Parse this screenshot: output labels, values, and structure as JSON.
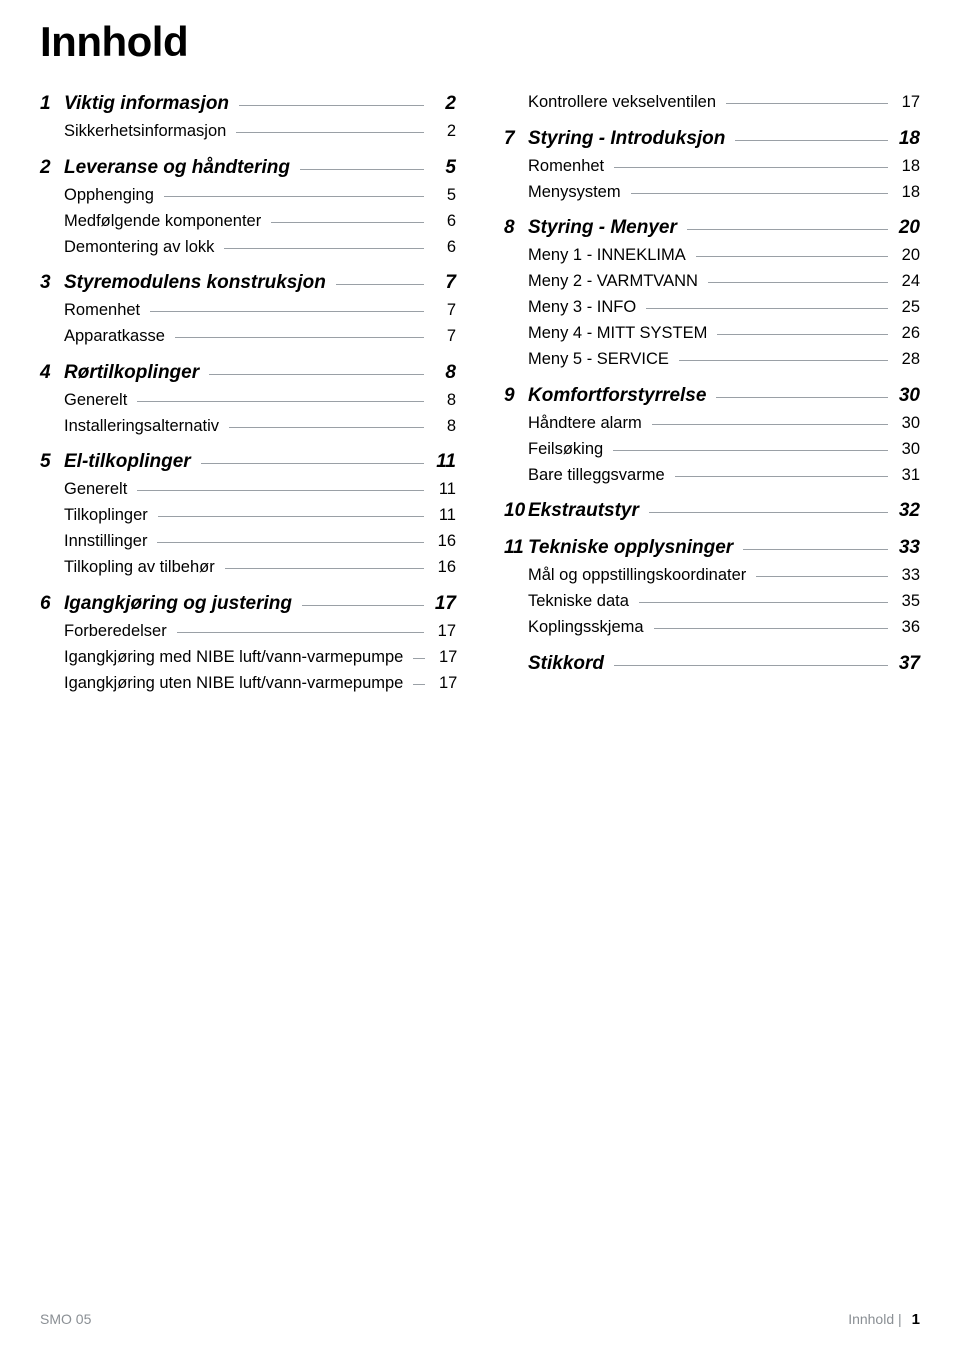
{
  "title": "Innhold",
  "left": [
    {
      "type": "chapter",
      "num": "1",
      "label": "Viktig informasjon",
      "page": "2"
    },
    {
      "type": "sub",
      "label": "Sikkerhetsinformasjon",
      "page": "2"
    },
    {
      "type": "chapter",
      "num": "2",
      "label": "Leveranse og håndtering",
      "page": "5"
    },
    {
      "type": "sub",
      "label": "Opphenging",
      "page": "5"
    },
    {
      "type": "sub",
      "label": "Medfølgende komponenter",
      "page": "6"
    },
    {
      "type": "sub",
      "label": "Demontering av lokk",
      "page": "6"
    },
    {
      "type": "chapter",
      "num": "3",
      "label": "Styremodulens konstruksjon",
      "page": "7"
    },
    {
      "type": "sub",
      "label": "Romenhet",
      "page": "7"
    },
    {
      "type": "sub",
      "label": "Apparatkasse",
      "page": "7"
    },
    {
      "type": "chapter",
      "num": "4",
      "label": "Rørtilkoplinger",
      "page": "8"
    },
    {
      "type": "sub",
      "label": "Generelt",
      "page": "8"
    },
    {
      "type": "sub",
      "label": "Installeringsalternativ",
      "page": "8"
    },
    {
      "type": "chapter",
      "num": "5",
      "label": "El-tilkoplinger",
      "page": "11"
    },
    {
      "type": "sub",
      "label": "Generelt",
      "page": "11"
    },
    {
      "type": "sub",
      "label": "Tilkoplinger",
      "page": "11"
    },
    {
      "type": "sub",
      "label": "Innstillinger",
      "page": "16"
    },
    {
      "type": "sub",
      "label": "Tilkopling av tilbehør",
      "page": "16"
    },
    {
      "type": "chapter",
      "num": "6",
      "label": "Igangkjøring og justering",
      "page": "17"
    },
    {
      "type": "sub",
      "label": "Forberedelser",
      "page": "17"
    },
    {
      "type": "sub",
      "label": "Igangkjøring med NIBE luft/vann-varmepumpe",
      "page": "17"
    },
    {
      "type": "sub",
      "label": "Igangkjøring uten NIBE luft/vann-varmepumpe",
      "page": "17"
    }
  ],
  "right": [
    {
      "type": "sub",
      "label": "Kontrollere vekselventilen",
      "page": "17"
    },
    {
      "type": "chapter",
      "num": "7",
      "label": "Styring - Introduksjon",
      "page": "18"
    },
    {
      "type": "sub",
      "label": "Romenhet",
      "page": "18"
    },
    {
      "type": "sub",
      "label": "Menysystem",
      "page": "18"
    },
    {
      "type": "chapter",
      "num": "8",
      "label": "Styring - Menyer",
      "page": "20"
    },
    {
      "type": "sub",
      "label": "Meny 1 - INNEKLIMA",
      "page": "20"
    },
    {
      "type": "sub",
      "label": "Meny 2 - VARMTVANN",
      "page": "24"
    },
    {
      "type": "sub",
      "label": "Meny 3 - INFO",
      "page": "25"
    },
    {
      "type": "sub",
      "label": "Meny 4 - MITT SYSTEM",
      "page": "26"
    },
    {
      "type": "sub",
      "label": "Meny 5 - SERVICE",
      "page": "28"
    },
    {
      "type": "chapter",
      "num": "9",
      "label": "Komfortforstyrrelse",
      "page": "30"
    },
    {
      "type": "sub",
      "label": "Håndtere alarm",
      "page": "30"
    },
    {
      "type": "sub",
      "label": "Feilsøking",
      "page": "30"
    },
    {
      "type": "sub",
      "label": "Bare tilleggsvarme",
      "page": "31"
    },
    {
      "type": "chapter",
      "num": "10",
      "label": "Ekstrautstyr",
      "page": "32"
    },
    {
      "type": "chapter",
      "num": "11",
      "label": "Tekniske opplysninger",
      "page": "33"
    },
    {
      "type": "sub",
      "label": "Mål og oppstillingskoordinater",
      "page": "33"
    },
    {
      "type": "sub",
      "label": "Tekniske data",
      "page": "35"
    },
    {
      "type": "sub",
      "label": "Koplingsskjema",
      "page": "36"
    },
    {
      "type": "chapter",
      "num": "",
      "label": "Stikkord",
      "page": "37"
    }
  ],
  "footer": {
    "left": "SMO 05",
    "right_label": "Innhold |",
    "right_page": "1"
  }
}
